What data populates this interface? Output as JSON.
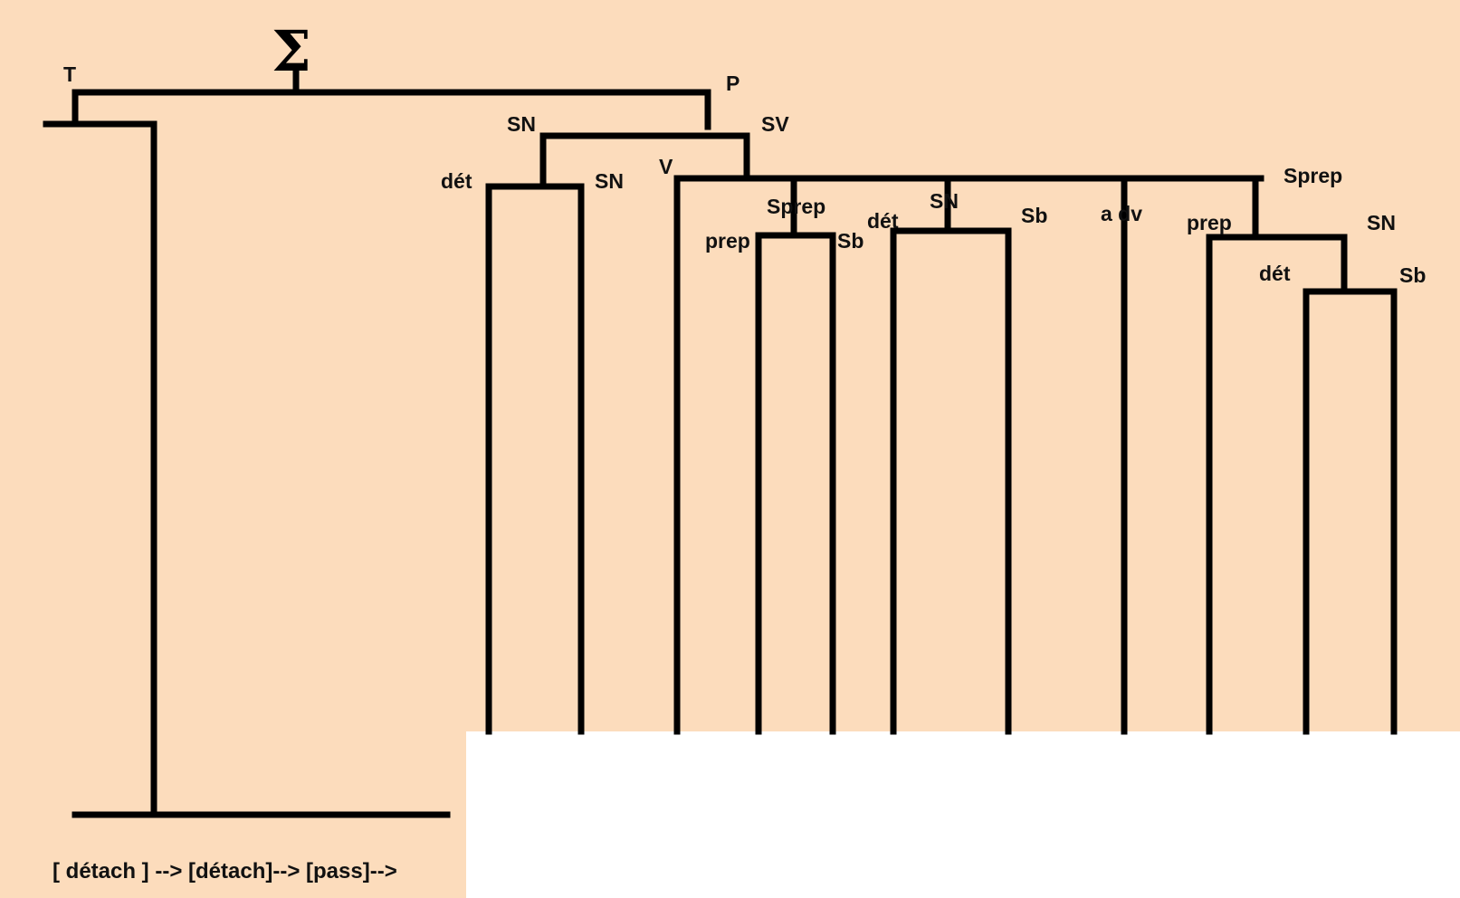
{
  "colors": {
    "background": "#fcdcbc",
    "lines": "#000000",
    "blank_area": "#ffffff"
  },
  "root_symbol": "Σ",
  "labels": {
    "T": "T",
    "P": "P",
    "SN_subject": "SN",
    "SV": "SV",
    "det_1": "dét",
    "SN_1": "SN",
    "V": "V",
    "Sprep_1": "Sprep",
    "prep_1": "prep",
    "Sb_1": "Sb",
    "det_2": "dét",
    "SN_2": "SN",
    "Sb_2": "Sb",
    "adv": "a dv",
    "Sprep_2": "Sprep",
    "prep_2": "prep",
    "SN_3": "SN",
    "det_3": "dét",
    "Sb_3": "Sb"
  },
  "transformations": "[ détach ] --> [détach]--> [pass]-->"
}
